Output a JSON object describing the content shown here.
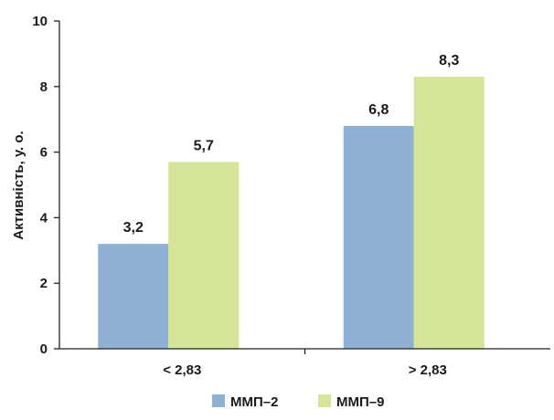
{
  "chart_data": {
    "type": "bar",
    "categories": [
      "< 2,83",
      "> 2,83"
    ],
    "series": [
      {
        "name": "ММП–2",
        "values": [
          3.2,
          6.8
        ],
        "labels": [
          "3,2",
          "6,8"
        ],
        "color": "#8eb0d2"
      },
      {
        "name": "ММП–9",
        "values": [
          5.7,
          8.3
        ],
        "labels": [
          "5,7",
          "8,3"
        ],
        "color": "#d4e597"
      }
    ],
    "ylabel": "Активність, у. о.",
    "xlabel": "",
    "ylim": [
      0,
      10
    ],
    "yticks": [
      0,
      2,
      4,
      6,
      8,
      10
    ],
    "grid": false,
    "legend": "bottom-center"
  }
}
